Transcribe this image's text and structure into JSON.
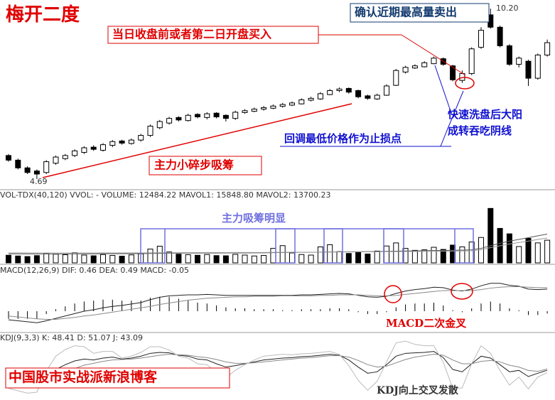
{
  "title": "梅开二度",
  "annotations": {
    "buy": "当日收盘前或者第二日开盘买入",
    "sell": "确认近期最高量卖出",
    "accumulate": "主力小碎步吸筹",
    "stop_loss": "回调最低价格作为止损点",
    "wash_line1": "快速洗盘后大阳",
    "wash_line2": "成转吞吃阴线",
    "volume_note": "主力吸筹明显",
    "macd_note": "MACD二次金叉",
    "blog": "中国股市实战派新浪博客",
    "kdj_note": "KDJ向上交叉发散"
  },
  "chart_data": [
    {
      "type": "candlestick",
      "ylim": [
        4.39,
        10.48
      ],
      "price_labels": [
        {
          "value": 4.69,
          "label": "4.69"
        },
        {
          "value": 10.2,
          "label": "10.20"
        }
      ],
      "candles": [
        [
          5.45,
          5.5,
          5.25,
          5.3
        ],
        [
          5.3,
          5.35,
          5.0,
          5.05
        ],
        [
          5.05,
          5.1,
          4.85,
          4.9
        ],
        [
          4.95,
          5.0,
          4.69,
          4.85
        ],
        [
          4.9,
          5.3,
          4.85,
          5.25
        ],
        [
          5.2,
          5.45,
          5.15,
          5.4
        ],
        [
          5.35,
          5.5,
          5.3,
          5.45
        ],
        [
          5.45,
          5.65,
          5.4,
          5.6
        ],
        [
          5.55,
          5.75,
          5.5,
          5.7
        ],
        [
          5.72,
          5.78,
          5.6,
          5.65
        ],
        [
          5.62,
          5.85,
          5.58,
          5.8
        ],
        [
          5.78,
          5.95,
          5.72,
          5.9
        ],
        [
          5.92,
          5.96,
          5.8,
          5.85
        ],
        [
          5.84,
          6.0,
          5.8,
          5.95
        ],
        [
          5.95,
          6.15,
          5.9,
          6.1
        ],
        [
          6.1,
          6.45,
          6.05,
          6.4
        ],
        [
          6.35,
          6.6,
          6.3,
          6.55
        ],
        [
          6.5,
          6.7,
          6.45,
          6.65
        ],
        [
          6.68,
          6.72,
          6.55,
          6.6
        ],
        [
          6.58,
          6.8,
          6.55,
          6.75
        ],
        [
          6.78,
          6.82,
          6.65,
          6.7
        ],
        [
          6.68,
          6.85,
          6.62,
          6.8
        ],
        [
          6.82,
          6.85,
          6.65,
          6.7
        ],
        [
          6.75,
          6.78,
          6.55,
          6.65
        ],
        [
          6.65,
          6.9,
          6.6,
          6.85
        ],
        [
          6.84,
          6.95,
          6.8,
          6.9
        ],
        [
          6.88,
          7.0,
          6.85,
          6.95
        ],
        [
          6.95,
          7.05,
          6.9,
          7.0
        ],
        [
          6.98,
          7.1,
          6.95,
          7.05
        ],
        [
          7.04,
          7.15,
          7.0,
          7.1
        ],
        [
          7.08,
          7.2,
          7.05,
          7.15
        ],
        [
          7.12,
          7.3,
          7.1,
          7.25
        ],
        [
          7.24,
          7.35,
          7.2,
          7.3
        ],
        [
          7.28,
          7.5,
          7.25,
          7.45
        ],
        [
          7.42,
          7.6,
          7.4,
          7.55
        ],
        [
          7.55,
          7.65,
          7.5,
          7.6
        ],
        [
          7.62,
          7.65,
          7.45,
          7.5
        ],
        [
          7.55,
          7.58,
          7.3,
          7.35
        ],
        [
          7.38,
          7.42,
          7.25,
          7.3
        ],
        [
          7.28,
          7.45,
          7.25,
          7.4
        ],
        [
          7.4,
          7.75,
          7.38,
          7.7
        ],
        [
          7.72,
          8.25,
          7.7,
          8.2
        ],
        [
          8.15,
          8.35,
          8.1,
          8.3
        ],
        [
          8.28,
          8.4,
          8.25,
          8.35
        ],
        [
          8.32,
          8.5,
          8.3,
          8.45
        ],
        [
          8.42,
          8.65,
          8.4,
          8.6
        ],
        [
          8.58,
          8.62,
          8.35,
          8.4
        ],
        [
          8.35,
          8.38,
          7.85,
          7.9
        ],
        [
          7.88,
          8.2,
          7.8,
          8.1
        ],
        [
          8.1,
          8.95,
          8.05,
          8.9
        ],
        [
          8.95,
          9.6,
          8.9,
          9.5
        ],
        [
          10.0,
          10.2,
          9.55,
          9.6
        ],
        [
          9.6,
          9.65,
          8.95,
          9.0
        ],
        [
          9.0,
          9.05,
          8.35,
          8.4
        ],
        [
          8.4,
          8.65,
          8.3,
          8.6
        ],
        [
          8.5,
          8.55,
          7.7,
          7.95
        ],
        [
          7.95,
          8.75,
          7.9,
          8.7
        ],
        [
          8.7,
          9.2,
          8.65,
          9.1
        ]
      ]
    },
    {
      "type": "volume",
      "header": "VOL-TDX(40,120) VVOL: -  VOLUME: 12484.22  MAVOL1: 15848.80  MAVOL2: 13700.23",
      "ylim": [
        0,
        36000
      ],
      "values": [
        4200,
        3800,
        3500,
        4000,
        5200,
        4800,
        4500,
        5600,
        4300,
        3900,
        4600,
        4100,
        3700,
        4400,
        5000,
        7600,
        9200,
        6000,
        4800,
        4500,
        4200,
        4600,
        4000,
        3900,
        4700,
        4300,
        3800,
        4100,
        8000,
        9500,
        5500,
        4600,
        4300,
        8800,
        10000,
        6200,
        5200,
        5800,
        4900,
        6500,
        9300,
        11000,
        8000,
        6900,
        7200,
        8600,
        7400,
        9800,
        8800,
        11500,
        14000,
        30000,
        19000,
        16000,
        9000,
        13500,
        11000,
        12484.22
      ],
      "mavol1": [
        5000,
        4980,
        4950,
        4930,
        4940,
        4950,
        4960,
        4990,
        5000,
        5010,
        5030,
        5040,
        5050,
        5070,
        5100,
        5180,
        5290,
        5340,
        5370,
        5390,
        5410,
        5440,
        5450,
        5460,
        5490,
        5500,
        5510,
        5530,
        5620,
        5730,
        5770,
        5800,
        5820,
        5910,
        6020,
        6070,
        6110,
        6160,
        6190,
        6250,
        6350,
        6470,
        6550,
        6620,
        6690,
        6780,
        6850,
        6950,
        7050,
        7180,
        8000,
        9500,
        10800,
        12000,
        12900,
        13900,
        14900,
        15848.8
      ],
      "mavol2": [
        5500,
        5480,
        5460,
        5440,
        5430,
        5420,
        5420,
        5430,
        5440,
        5450,
        5460,
        5470,
        5480,
        5490,
        5500,
        5530,
        5570,
        5600,
        5620,
        5640,
        5650,
        5670,
        5680,
        5690,
        5700,
        5710,
        5720,
        5730,
        5770,
        5820,
        5850,
        5870,
        5890,
        5930,
        5980,
        6010,
        6040,
        6070,
        6090,
        6120,
        6170,
        6230,
        6280,
        6320,
        6360,
        6410,
        6450,
        6510,
        6570,
        6640,
        7300,
        8400,
        9400,
        10400,
        11200,
        12000,
        12900,
        13700.23
      ]
    },
    {
      "type": "macd",
      "header": "MACD(12,26,9) DIF: 0.46 DEA: 0.49 MACD: -0.05",
      "ylim": [
        -0.4,
        0.74
      ],
      "dif": [
        -0.18,
        -0.2,
        -0.22,
        -0.24,
        -0.2,
        -0.15,
        -0.1,
        -0.05,
        0.0,
        0.03,
        0.07,
        0.1,
        0.12,
        0.15,
        0.18,
        0.24,
        0.29,
        0.32,
        0.33,
        0.34,
        0.34,
        0.35,
        0.34,
        0.33,
        0.33,
        0.33,
        0.33,
        0.33,
        0.33,
        0.33,
        0.33,
        0.34,
        0.34,
        0.35,
        0.36,
        0.37,
        0.36,
        0.33,
        0.3,
        0.29,
        0.31,
        0.37,
        0.42,
        0.45,
        0.47,
        0.5,
        0.49,
        0.44,
        0.42,
        0.46,
        0.53,
        0.58,
        0.58,
        0.54,
        0.52,
        0.46,
        0.45,
        0.46
      ],
      "dea": [
        -0.1,
        -0.12,
        -0.14,
        -0.16,
        -0.17,
        -0.17,
        -0.15,
        -0.13,
        -0.1,
        -0.08,
        -0.05,
        -0.02,
        0.01,
        0.04,
        0.07,
        0.1,
        0.14,
        0.17,
        0.2,
        0.23,
        0.25,
        0.27,
        0.28,
        0.29,
        0.3,
        0.3,
        0.31,
        0.31,
        0.31,
        0.32,
        0.32,
        0.32,
        0.32,
        0.33,
        0.33,
        0.34,
        0.34,
        0.34,
        0.33,
        0.32,
        0.32,
        0.33,
        0.35,
        0.37,
        0.39,
        0.41,
        0.43,
        0.43,
        0.43,
        0.43,
        0.45,
        0.48,
        0.5,
        0.51,
        0.51,
        0.5,
        0.49,
        0.49
      ],
      "macd": [
        -0.16,
        -0.16,
        -0.16,
        -0.16,
        -0.06,
        0.04,
        0.1,
        0.16,
        0.2,
        0.22,
        0.24,
        0.24,
        0.22,
        0.22,
        0.22,
        0.28,
        0.3,
        0.3,
        0.26,
        0.22,
        0.18,
        0.16,
        0.12,
        0.08,
        0.06,
        0.06,
        0.04,
        0.04,
        0.04,
        0.02,
        0.02,
        0.04,
        0.04,
        0.04,
        0.06,
        0.06,
        0.04,
        -0.02,
        -0.06,
        -0.06,
        -0.02,
        0.08,
        0.14,
        0.16,
        0.16,
        0.18,
        0.12,
        0.02,
        -0.02,
        0.06,
        0.16,
        0.2,
        0.16,
        0.06,
        0.02,
        -0.08,
        -0.08,
        -0.05
      ]
    },
    {
      "type": "kdj",
      "header": "KDJ(9,3,3) K: 48.41 D: 51.07 J: 43.09",
      "ylim": [
        -10,
        110
      ],
      "k": [
        30,
        25,
        20,
        18,
        35,
        50,
        60,
        68,
        72,
        70,
        74,
        76,
        72,
        74,
        78,
        84,
        86,
        85,
        80,
        78,
        72,
        70,
        62,
        55,
        58,
        62,
        66,
        70,
        72,
        74,
        75,
        77,
        78,
        80,
        82,
        80,
        70,
        55,
        42,
        45,
        60,
        78,
        84,
        85,
        86,
        88,
        75,
        50,
        45,
        62,
        78,
        74,
        60,
        45,
        48,
        35,
        42,
        48.41
      ],
      "d": [
        40,
        35,
        30,
        26,
        29,
        36,
        44,
        52,
        59,
        63,
        67,
        70,
        71,
        72,
        74,
        77,
        80,
        82,
        81,
        80,
        77,
        75,
        71,
        66,
        63,
        63,
        64,
        66,
        68,
        70,
        72,
        74,
        75,
        77,
        79,
        79,
        76,
        69,
        60,
        55,
        57,
        64,
        71,
        76,
        79,
        82,
        80,
        70,
        62,
        62,
        67,
        69,
        66,
        59,
        55,
        48,
        46,
        51.07
      ],
      "j": [
        10,
        5,
        0,
        2,
        47,
        78,
        92,
        100,
        98,
        84,
        88,
        88,
        74,
        78,
        86,
        98,
        98,
        91,
        78,
        74,
        62,
        60,
        44,
        33,
        48,
        60,
        70,
        78,
        80,
        82,
        81,
        83,
        84,
        86,
        88,
        82,
        58,
        27,
        6,
        25,
        66,
        106,
        110,
        103,
        100,
        100,
        65,
        10,
        11,
        62,
        100,
        84,
        48,
        17,
        34,
        9,
        34,
        43.09
      ]
    }
  ]
}
